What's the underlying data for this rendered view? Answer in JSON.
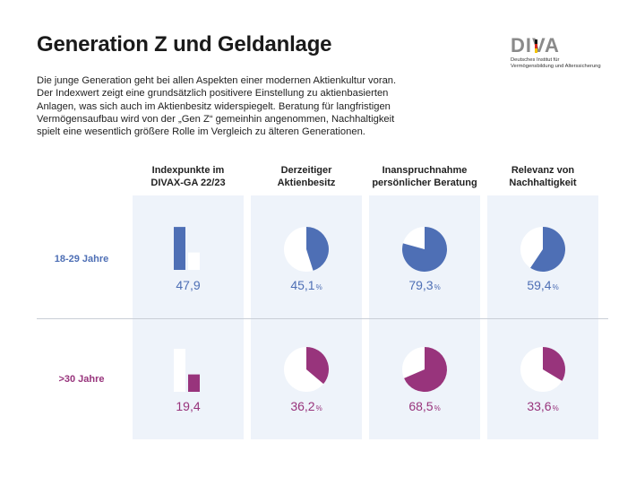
{
  "title": "Generation Z und Geldanlage",
  "intro": "Die junge Generation geht bei allen Aspekten einer modernen Aktienkultur voran. Der Indexwert zeigt eine grundsätzlich positivere Einstellung zu aktienbasierten Anlagen, was sich auch im Aktienbesitz widerspiegelt. Beratung für langfristigen Vermögensaufbau wird von der „Gen Z“ gemeinhin angenommen, Nachhaltigkeit spielt eine wesentlich größere Rolle im Vergleich zu älteren Generationen.",
  "logo": {
    "word": "DIVA",
    "sub1": "Deutsches Institut für",
    "sub2": "Vermögensbildung und Alterssicherung"
  },
  "columns": [
    {
      "line1": "Indexpunkte im",
      "line2": "DIVAX-GA 22/23"
    },
    {
      "line1": "Derzeitiger",
      "line2": "Aktienbesitz"
    },
    {
      "line1": "Inanspruchnahme",
      "line2": "persönlicher Beratung"
    },
    {
      "line1": "Relevanz von",
      "line2": "Nachhaltigkeit"
    }
  ],
  "rows": [
    {
      "label": "18-29 Jahre",
      "values": [
        "47,9",
        "45,1",
        "79,3",
        "59,4"
      ]
    },
    {
      "label": ">30 Jahre",
      "values": [
        "19,4",
        "36,2",
        "68,5",
        "33,6"
      ]
    }
  ],
  "unit": "%",
  "colors": {
    "young": "#4e6fb5",
    "old": "#98347c",
    "panel": "#eef3fa",
    "empty": "#ffffff"
  },
  "chart_data": {
    "type": "bar",
    "title": "Generation Z und Geldanlage",
    "categories": [
      "Indexpunkte im DIVAX-GA 22/23",
      "Derzeitiger Aktienbesitz",
      "Inanspruchnahme persönlicher Beratung",
      "Relevanz von Nachhaltigkeit"
    ],
    "series": [
      {
        "name": "18-29 Jahre",
        "values": [
          47.9,
          45.1,
          79.3,
          59.4
        ]
      },
      {
        "name": ">30 Jahre",
        "values": [
          19.4,
          36.2,
          68.5,
          33.6
        ]
      }
    ],
    "units": [
      "Indexpunkte",
      "%",
      "%",
      "%"
    ],
    "chart_types": [
      "bar",
      "pie",
      "pie",
      "pie"
    ]
  }
}
